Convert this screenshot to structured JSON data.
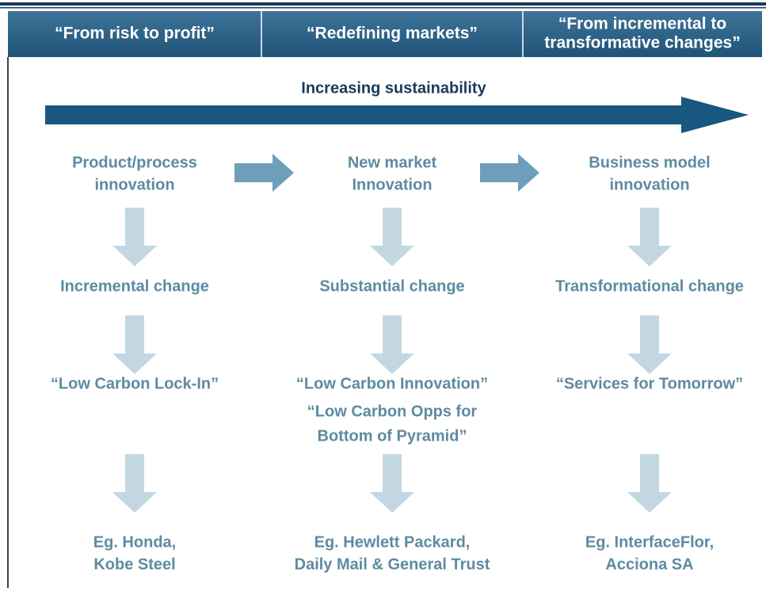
{
  "header": {
    "cells": [
      [
        "“From risk to profit”"
      ],
      [
        "“Redefining markets”"
      ],
      [
        "“From incremental to",
        "transformative changes”"
      ]
    ]
  },
  "title": "Increasing sustainability",
  "columns": [
    {
      "innovation": [
        "Product/process",
        "innovation"
      ],
      "change": "Incremental change",
      "labels": [
        "“Low Carbon Lock-In”"
      ],
      "example": [
        "Eg. Honda,",
        "Kobe Steel"
      ]
    },
    {
      "innovation": [
        "New market",
        "Innovation"
      ],
      "change": "Substantial change",
      "labels": [
        "“Low Carbon Innovation”",
        "“Low Carbon Opps for",
        "Bottom of Pyramid”"
      ],
      "example": [
        "Eg. Hewlett Packard,",
        "Daily Mail & General Trust"
      ]
    },
    {
      "innovation": [
        "Business model",
        "innovation"
      ],
      "change": "Transformational change",
      "labels": [
        "“Services for Tomorrow”"
      ],
      "example": [
        "Eg. InterfaceFlor,",
        "Acciona SA"
      ]
    }
  ]
}
